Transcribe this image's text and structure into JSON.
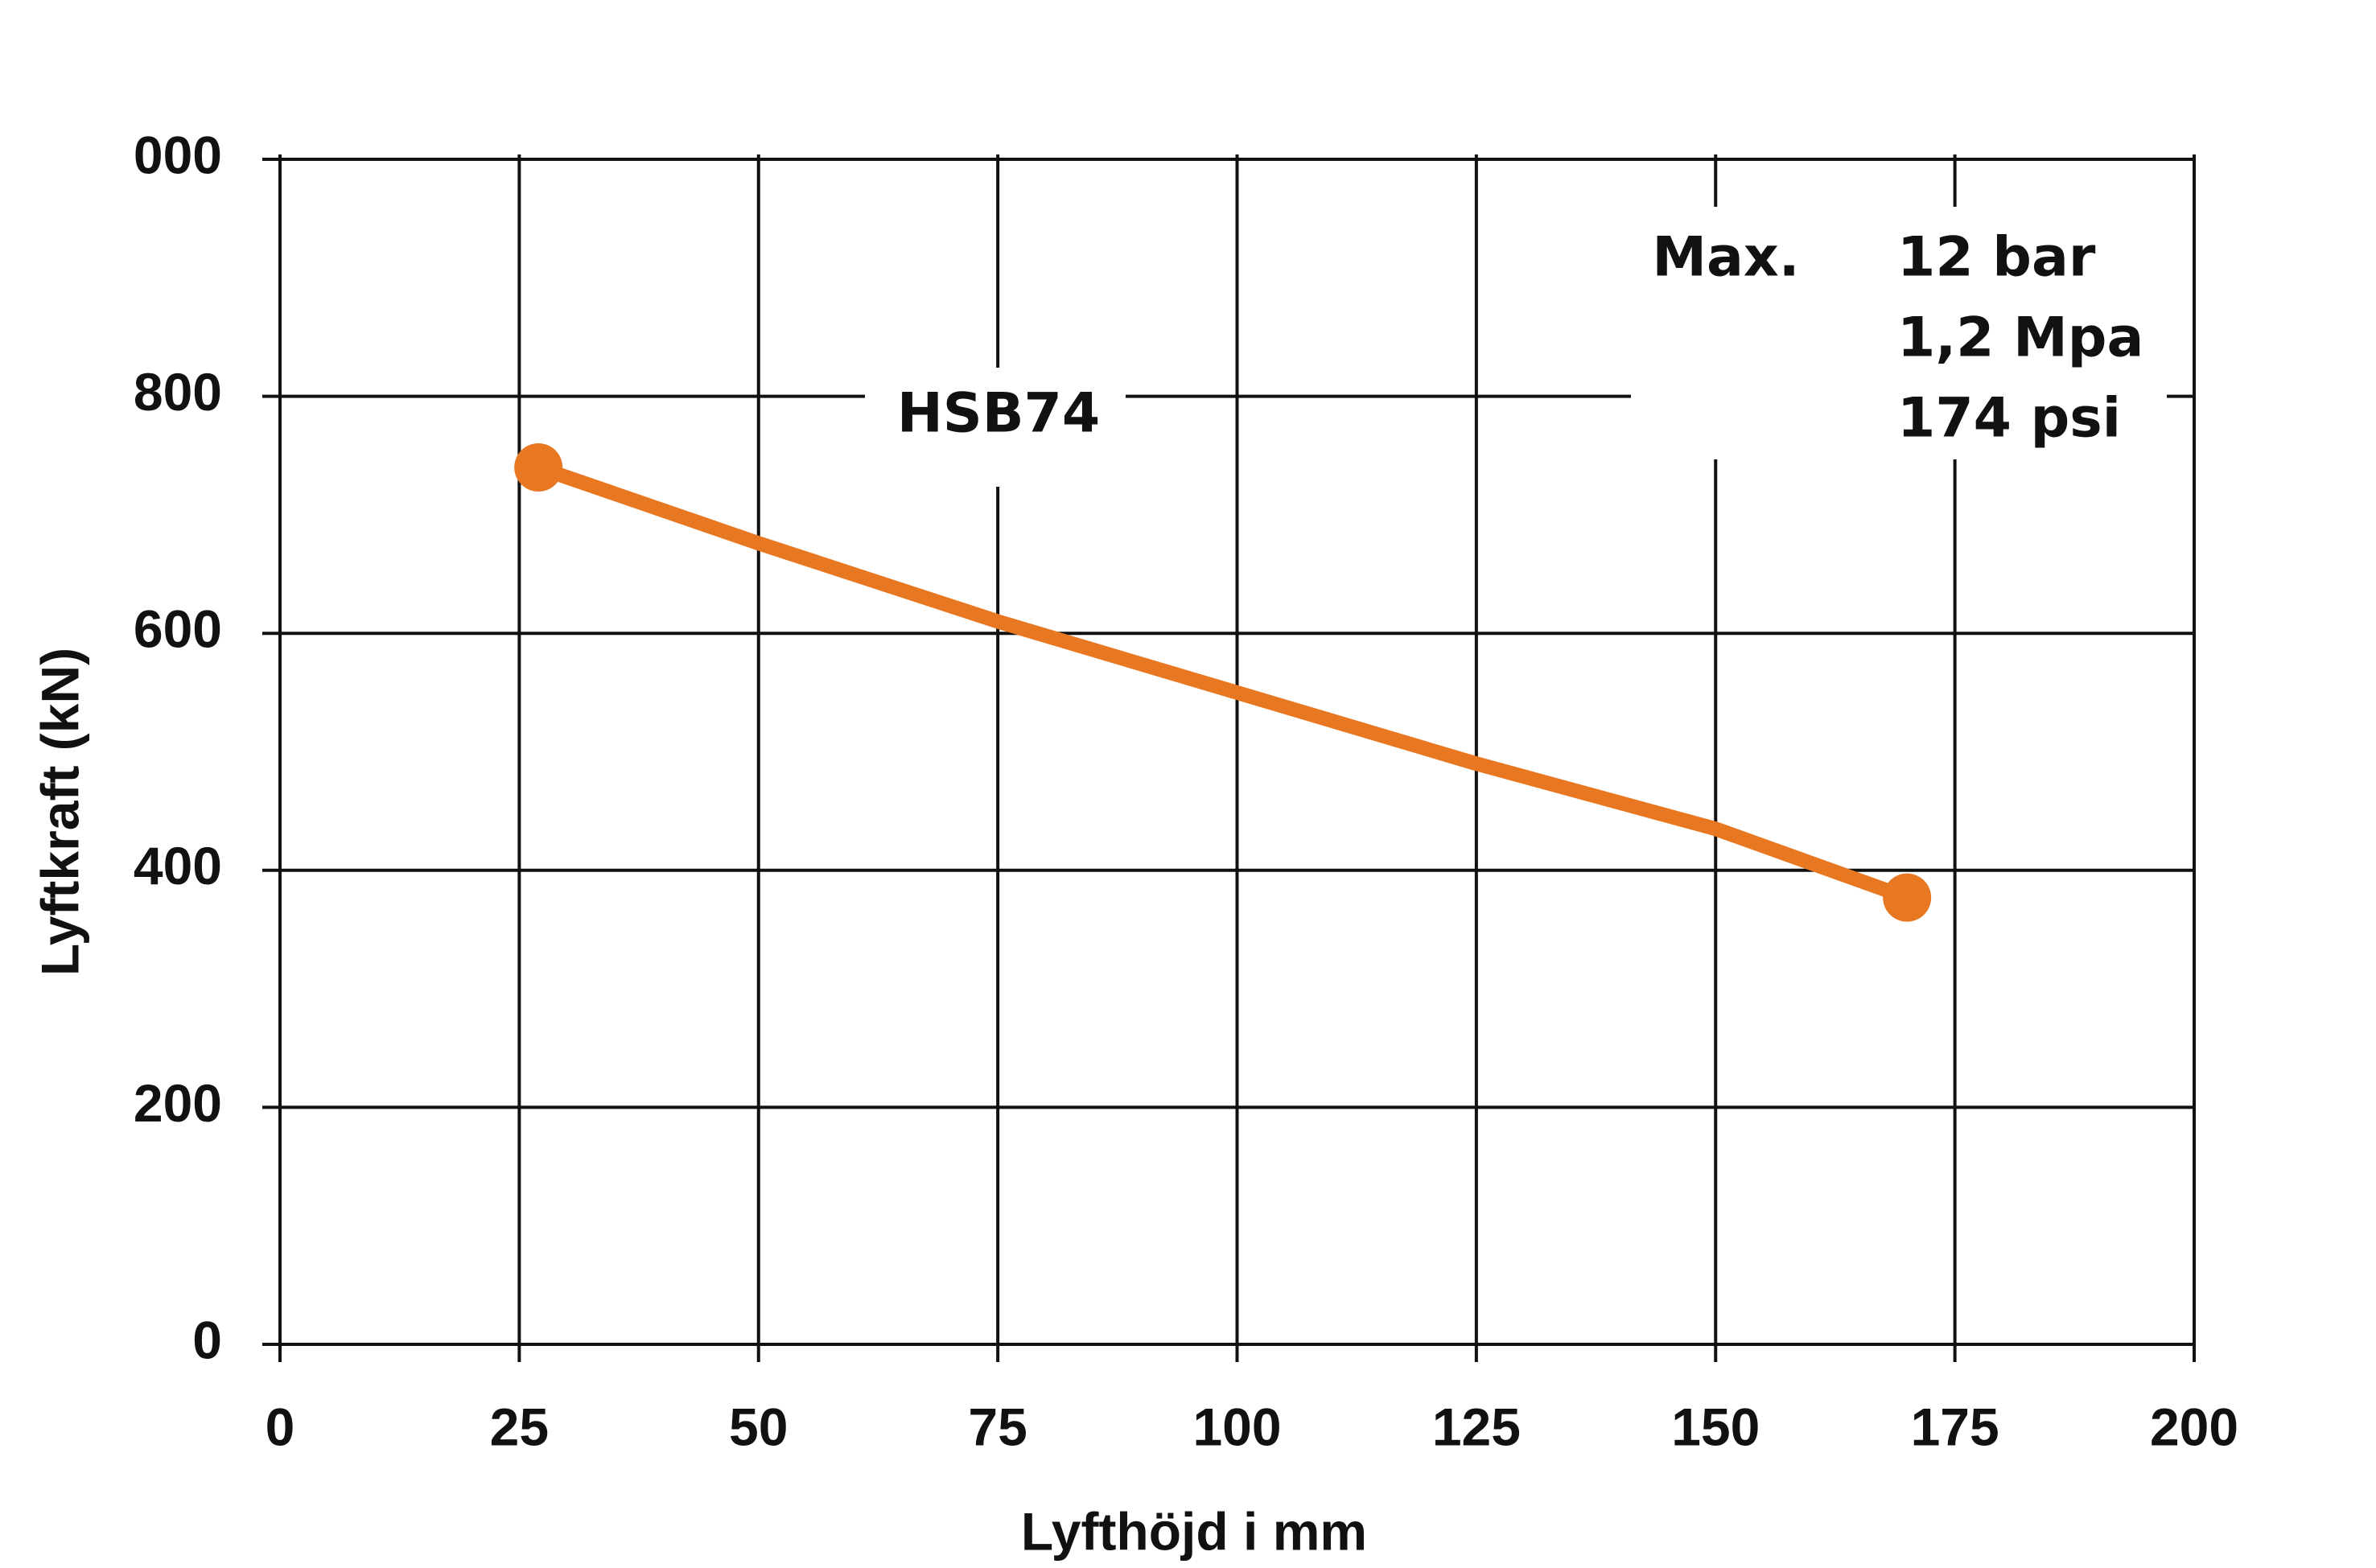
{
  "chart_data": {
    "type": "line",
    "x_label": "Lyfthöjd i mm",
    "y_label": "Lyftkraft (kN)",
    "series": [
      {
        "name": "HSB74",
        "color": "#e87722",
        "x": [
          27,
          50,
          75,
          100,
          125,
          150,
          170
        ],
        "values": [
          740,
          676,
          610,
          550,
          490,
          435,
          377
        ]
      }
    ],
    "xlim": [
      0,
      200
    ],
    "xticks": [
      0,
      25,
      50,
      75,
      100,
      125,
      150,
      175,
      200
    ],
    "ylim": [
      0,
      1000
    ],
    "yticks": [
      0,
      200,
      400,
      600,
      800,
      {
        "value": 1000,
        "label": "000"
      }
    ],
    "grid": true,
    "annotations": [
      "Max.",
      "12 bar",
      "1,2 Mpa",
      "174 psi"
    ]
  }
}
